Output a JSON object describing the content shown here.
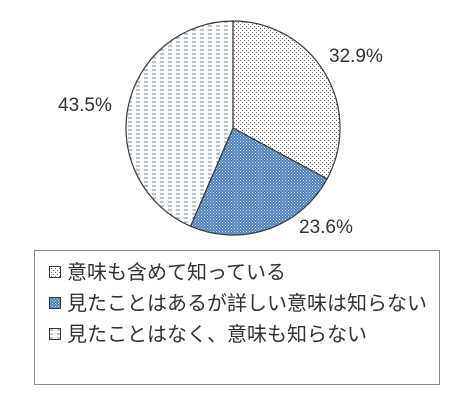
{
  "chart_data": {
    "type": "pie",
    "slices": [
      {
        "label": "意味も含めて知っている",
        "value": 32.9,
        "value_label": "32.9%",
        "pattern": "dots-white"
      },
      {
        "label": "見たことはあるが詳しい意味は知らない",
        "value": 23.6,
        "value_label": "23.6%",
        "pattern": "dots-blue"
      },
      {
        "label": "見たことはなく、意味も知らない",
        "value": 43.5,
        "value_label": "43.5%",
        "pattern": "dashes-white"
      }
    ],
    "start": "12 o'clock",
    "direction": "clockwise",
    "legend_position": "bottom",
    "colors": {
      "blue": "#4a7ebb",
      "outline": "#3a3a3a",
      "text": "#333333"
    }
  }
}
